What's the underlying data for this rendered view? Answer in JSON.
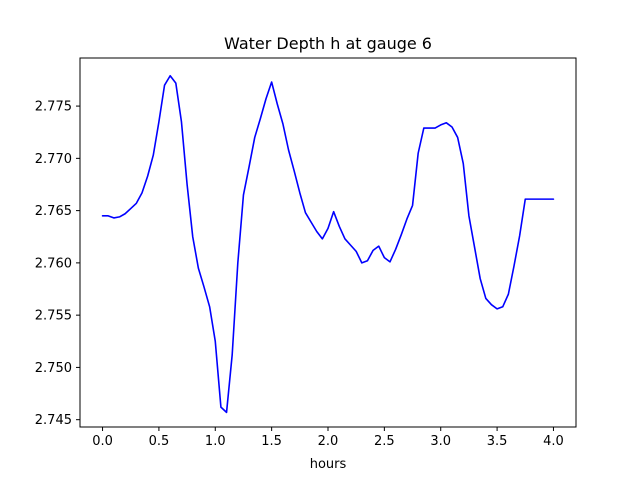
{
  "chart_data": {
    "type": "line",
    "title": "Water Depth h at gauge 6",
    "xlabel": "hours",
    "ylabel": "",
    "xlim": [
      -0.2,
      4.2
    ],
    "ylim": [
      2.7443,
      2.7796
    ],
    "xticks": [
      0.0,
      0.5,
      1.0,
      1.5,
      2.0,
      2.5,
      3.0,
      3.5,
      4.0
    ],
    "xtick_labels": [
      "0.0",
      "0.5",
      "1.0",
      "1.5",
      "2.0",
      "2.5",
      "3.0",
      "3.5",
      "4.0"
    ],
    "yticks": [
      2.745,
      2.75,
      2.755,
      2.76,
      2.765,
      2.77,
      2.775
    ],
    "ytick_labels": [
      "2.745",
      "2.750",
      "2.755",
      "2.760",
      "2.765",
      "2.770",
      "2.775"
    ],
    "grid": false,
    "series": [
      {
        "color": "#0000ff",
        "x": [
          0.0,
          0.05,
          0.1,
          0.15,
          0.2,
          0.25,
          0.3,
          0.35,
          0.4,
          0.45,
          0.5,
          0.55,
          0.6,
          0.65,
          0.7,
          0.75,
          0.8,
          0.85,
          0.9,
          0.95,
          1.0,
          1.05,
          1.1,
          1.15,
          1.2,
          1.25,
          1.3,
          1.35,
          1.4,
          1.45,
          1.5,
          1.55,
          1.6,
          1.65,
          1.7,
          1.75,
          1.8,
          1.85,
          1.9,
          1.95,
          2.0,
          2.05,
          2.1,
          2.15,
          2.2,
          2.25,
          2.3,
          2.35,
          2.4,
          2.45,
          2.5,
          2.55,
          2.6,
          2.65,
          2.7,
          2.75,
          2.8,
          2.85,
          2.9,
          2.95,
          3.0,
          3.05,
          3.1,
          3.15,
          3.2,
          3.25,
          3.3,
          3.35,
          3.4,
          3.45,
          3.5,
          3.55,
          3.6,
          3.65,
          3.7,
          3.75,
          3.8,
          3.85,
          3.9,
          3.95,
          4.0
        ],
        "y": [
          2.7645,
          2.7645,
          2.7643,
          2.7644,
          2.7647,
          2.7652,
          2.7657,
          2.7667,
          2.7683,
          2.7703,
          2.7735,
          2.777,
          2.7779,
          2.7772,
          2.7735,
          2.7675,
          2.7625,
          2.7595,
          2.7577,
          2.7558,
          2.7525,
          2.7462,
          2.7457,
          2.7512,
          2.76,
          2.7665,
          2.7692,
          2.772,
          2.7738,
          2.7757,
          2.7773,
          2.7752,
          2.7733,
          2.7708,
          2.7688,
          2.7667,
          2.7648,
          2.7639,
          2.763,
          2.7623,
          2.7633,
          2.7649,
          2.7635,
          2.7623,
          2.7617,
          2.7611,
          2.76,
          2.7602,
          2.7612,
          2.7616,
          2.7605,
          2.7601,
          2.7613,
          2.7627,
          2.7642,
          2.7655,
          2.7705,
          2.7729,
          2.7729,
          2.7729,
          2.7732,
          2.7734,
          2.773,
          2.772,
          2.7695,
          2.7645,
          2.7615,
          2.7585,
          2.7566,
          2.756,
          2.7556,
          2.7558,
          2.757,
          2.7597,
          2.7626,
          2.7661,
          2.7661,
          2.7661,
          2.7661,
          2.7661,
          2.7661
        ]
      }
    ]
  }
}
